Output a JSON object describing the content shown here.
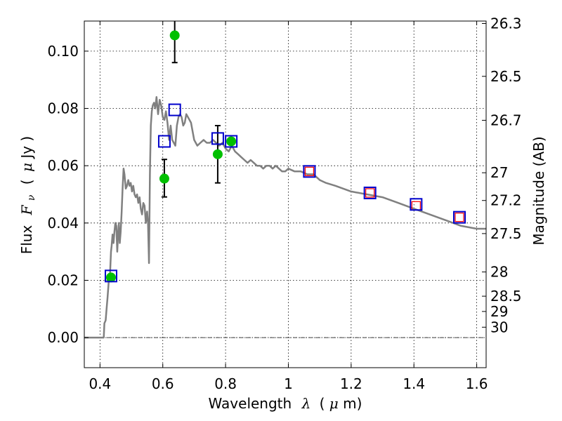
{
  "chart_data": {
    "type": "scatter",
    "xlabel_main": "Wavelength",
    "xlabel_symbol": "λ",
    "xlabel_unit_open": "(",
    "xlabel_unit_mu": "μ",
    "xlabel_unit_rest": "m)",
    "ylabel_main": "Flux",
    "ylabel_symbol": "F",
    "ylabel_symbol_sub": "ν",
    "ylabel_unit_open": "(",
    "ylabel_unit_mu": "μ",
    "ylabel_unit_rest": "Jy )",
    "y2label": "Magnitude (AB)",
    "xlim": [
      0.35,
      1.63
    ],
    "ylim": [
      -0.0105,
      0.1105
    ],
    "grid": true,
    "x_ticks": [
      {
        "v": 0.4,
        "label": "0.4"
      },
      {
        "v": 0.6,
        "label": "0.6"
      },
      {
        "v": 0.8,
        "label": "0.8"
      },
      {
        "v": 1.0,
        "label": "1"
      },
      {
        "v": 1.2,
        "label": "1.2"
      },
      {
        "v": 1.4,
        "label": "1.4"
      },
      {
        "v": 1.6,
        "label": "1.6"
      }
    ],
    "y_ticks": [
      {
        "v": 0.0,
        "label": "0.00"
      },
      {
        "v": 0.02,
        "label": "0.02"
      },
      {
        "v": 0.04,
        "label": "0.04"
      },
      {
        "v": 0.06,
        "label": "0.06"
      },
      {
        "v": 0.08,
        "label": "0.08"
      },
      {
        "v": 0.1,
        "label": "0.10"
      }
    ],
    "magnitude_ticks": [
      {
        "mag": 26.3,
        "label": "26.3"
      },
      {
        "mag": 26.5,
        "label": "26.5"
      },
      {
        "mag": 26.7,
        "label": "26.7"
      },
      {
        "mag": 27.0,
        "label": "27"
      },
      {
        "mag": 27.2,
        "label": "27.2"
      },
      {
        "mag": 27.5,
        "label": "27.5"
      },
      {
        "mag": 28.0,
        "label": "28"
      },
      {
        "mag": 28.5,
        "label": "28.5"
      },
      {
        "mag": 29.0,
        "label": "29"
      },
      {
        "mag": 30.0,
        "label": "30"
      }
    ],
    "series": [
      {
        "kind": "line",
        "color": "#808080",
        "x": [
          0.35,
          0.4,
          0.412,
          0.414,
          0.418,
          0.421,
          0.424,
          0.428,
          0.43,
          0.432,
          0.435,
          0.437,
          0.44,
          0.443,
          0.446,
          0.449,
          0.452,
          0.455,
          0.458,
          0.46,
          0.463,
          0.466,
          0.469,
          0.472,
          0.475,
          0.478,
          0.482,
          0.486,
          0.49,
          0.494,
          0.498,
          0.502,
          0.506,
          0.51,
          0.514,
          0.518,
          0.522,
          0.526,
          0.53,
          0.534,
          0.538,
          0.542,
          0.546,
          0.55,
          0.553,
          0.556,
          0.559,
          0.562,
          0.565,
          0.568,
          0.572,
          0.576,
          0.58,
          0.585,
          0.59,
          0.595,
          0.6,
          0.605,
          0.61,
          0.615,
          0.62,
          0.625,
          0.63,
          0.635,
          0.64,
          0.645,
          0.65,
          0.655,
          0.66,
          0.665,
          0.67,
          0.675,
          0.68,
          0.69,
          0.7,
          0.71,
          0.72,
          0.73,
          0.74,
          0.75,
          0.76,
          0.77,
          0.78,
          0.79,
          0.8,
          0.81,
          0.82,
          0.83,
          0.84,
          0.85,
          0.86,
          0.87,
          0.88,
          0.89,
          0.9,
          0.91,
          0.92,
          0.93,
          0.94,
          0.95,
          0.96,
          0.97,
          0.98,
          0.99,
          1.0,
          1.02,
          1.04,
          1.06,
          1.08,
          1.1,
          1.12,
          1.15,
          1.2,
          1.25,
          1.3,
          1.35,
          1.4,
          1.45,
          1.5,
          1.55,
          1.6,
          1.63
        ],
        "y": [
          0.0,
          0.0,
          0.0,
          0.005,
          0.006,
          0.01,
          0.014,
          0.02,
          0.021,
          0.022,
          0.03,
          0.032,
          0.036,
          0.033,
          0.037,
          0.04,
          0.039,
          0.03,
          0.037,
          0.04,
          0.033,
          0.037,
          0.044,
          0.052,
          0.059,
          0.057,
          0.052,
          0.053,
          0.055,
          0.053,
          0.054,
          0.051,
          0.053,
          0.05,
          0.049,
          0.05,
          0.047,
          0.049,
          0.045,
          0.043,
          0.047,
          0.046,
          0.04,
          0.044,
          0.04,
          0.026,
          0.057,
          0.074,
          0.079,
          0.081,
          0.082,
          0.08,
          0.084,
          0.078,
          0.083,
          0.081,
          0.077,
          0.076,
          0.079,
          0.075,
          0.069,
          0.074,
          0.069,
          0.068,
          0.067,
          0.074,
          0.077,
          0.078,
          0.077,
          0.074,
          0.075,
          0.078,
          0.077,
          0.075,
          0.069,
          0.067,
          0.068,
          0.069,
          0.068,
          0.068,
          0.069,
          0.068,
          0.067,
          0.068,
          0.066,
          0.065,
          0.067,
          0.065,
          0.064,
          0.063,
          0.062,
          0.061,
          0.062,
          0.061,
          0.06,
          0.06,
          0.059,
          0.06,
          0.06,
          0.059,
          0.06,
          0.059,
          0.058,
          0.058,
          0.059,
          0.058,
          0.058,
          0.057,
          0.057,
          0.055,
          0.054,
          0.053,
          0.051,
          0.05,
          0.049,
          0.047,
          0.045,
          0.043,
          0.041,
          0.039,
          0.038,
          0.038
        ]
      },
      {
        "kind": "points",
        "marker": "circle",
        "color": "#00c000",
        "points": [
          {
            "x": 0.435,
            "y": 0.021
          },
          {
            "x": 0.605,
            "y": 0.0555,
            "err_low": 0.0064,
            "err_high": 0.0067
          },
          {
            "x": 0.638,
            "y": 0.1055,
            "err_low": 0.0095,
            "err_high": 0.0055
          },
          {
            "x": 0.775,
            "y": 0.064,
            "err_low": 0.01,
            "err_high": 0.01
          },
          {
            "x": 0.818,
            "y": 0.0685
          }
        ]
      },
      {
        "kind": "points",
        "marker": "square-small",
        "color": "#ff0000",
        "points": [
          {
            "x": 1.067,
            "y": 0.058
          },
          {
            "x": 1.26,
            "y": 0.0505
          },
          {
            "x": 1.407,
            "y": 0.046
          },
          {
            "x": 1.545,
            "y": 0.042
          }
        ]
      },
      {
        "kind": "points",
        "marker": "square",
        "color": "#0000cc",
        "points": [
          {
            "x": 0.435,
            "y": 0.0215
          },
          {
            "x": 0.605,
            "y": 0.0685
          },
          {
            "x": 0.638,
            "y": 0.0795
          },
          {
            "x": 0.775,
            "y": 0.0695
          },
          {
            "x": 0.818,
            "y": 0.0685
          },
          {
            "x": 1.067,
            "y": 0.058
          },
          {
            "x": 1.26,
            "y": 0.0505
          },
          {
            "x": 1.407,
            "y": 0.0465
          },
          {
            "x": 1.545,
            "y": 0.042
          }
        ]
      }
    ]
  }
}
